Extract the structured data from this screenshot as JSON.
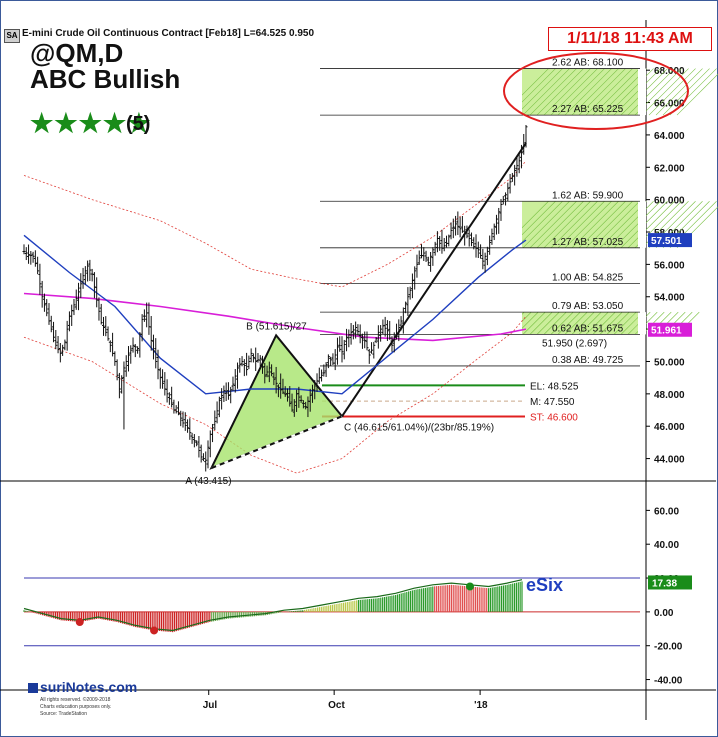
{
  "header": {
    "sa_box": "SA",
    "contract": "E-mini Crude Oil Continuous Contract [Feb18]  L=64.525  0.950",
    "ticker": "@QM,D",
    "pattern": "ABC Bullish",
    "stars": "★★★★★",
    "rating": "(5)",
    "timestamp": "1/11/18 11:43 AM"
  },
  "logo": {
    "name": "suriNotes.com",
    "line1": "All rights reserved. ©2009-2018",
    "line2": "Charts education purposes only.",
    "line3": "Source: TradeStation"
  },
  "colors": {
    "bars": "#111111",
    "sma_blue": "#1f3fbf",
    "sma_magenta": "#d81ed8",
    "band_red": "#e0403a",
    "pattern_fill": "#a6e36b",
    "zone_fill": "#b9e87a",
    "el_green": "#1a8c1a",
    "st_red": "#e02020",
    "ellipse_red": "#e02020",
    "esix_blue": "#1f3fbf"
  },
  "chart_data": [
    {
      "type": "candlestick",
      "symbol": "@QM,D",
      "ylim": [
        42.8,
        69.0
      ],
      "y_ticks": [
        "44.000",
        "46.000",
        "48.000",
        "50.000",
        "52.000",
        "54.000",
        "56.000",
        "58.000",
        "60.000",
        "62.000",
        "64.000",
        "66.000",
        "68.000"
      ],
      "x_ticks": [
        "Jul",
        "Oct",
        "'18"
      ],
      "last_price_tags": [
        {
          "value": "57.501",
          "color": "#1f3fbf"
        },
        {
          "value": "51.961",
          "color": "#d81ed8"
        }
      ],
      "ohlc_close_path": [
        [
          0,
          56.8
        ],
        [
          4,
          56.6
        ],
        [
          8,
          56.5
        ],
        [
          12,
          55.6
        ],
        [
          16,
          54.0
        ],
        [
          20,
          53.0
        ],
        [
          24,
          52.0
        ],
        [
          28,
          51.0
        ],
        [
          32,
          50.5
        ],
        [
          36,
          51.2
        ],
        [
          40,
          52.8
        ],
        [
          44,
          53.5
        ],
        [
          48,
          54.3
        ],
        [
          52,
          55.3
        ],
        [
          56,
          55.9
        ],
        [
          60,
          55.4
        ],
        [
          64,
          53.8
        ],
        [
          68,
          52.4
        ],
        [
          72,
          51.8
        ],
        [
          76,
          51.0
        ],
        [
          80,
          50.0
        ],
        [
          84,
          48.3
        ],
        [
          88,
          49.6
        ],
        [
          92,
          50.4
        ],
        [
          96,
          51.0
        ],
        [
          100,
          50.8
        ],
        [
          104,
          52.6
        ],
        [
          108,
          53.0
        ],
        [
          112,
          51.3
        ],
        [
          116,
          50.0
        ],
        [
          120,
          49.0
        ],
        [
          124,
          48.3
        ],
        [
          128,
          47.7
        ],
        [
          132,
          47.0
        ],
        [
          136,
          46.8
        ],
        [
          140,
          46.2
        ],
        [
          144,
          45.9
        ],
        [
          148,
          45.3
        ],
        [
          152,
          44.9
        ],
        [
          156,
          44.1
        ],
        [
          160,
          43.9
        ],
        [
          164,
          45.5
        ],
        [
          168,
          46.3
        ],
        [
          172,
          47.6
        ],
        [
          176,
          48.2
        ],
        [
          180,
          47.9
        ],
        [
          184,
          48.6
        ],
        [
          188,
          49.6
        ],
        [
          192,
          50.0
        ],
        [
          196,
          49.5
        ],
        [
          200,
          50.5
        ],
        [
          204,
          50.0
        ],
        [
          208,
          50.2
        ],
        [
          212,
          49.1
        ],
        [
          216,
          49.6
        ],
        [
          220,
          48.9
        ],
        [
          224,
          48.4
        ],
        [
          228,
          48.1
        ],
        [
          232,
          47.8
        ],
        [
          236,
          47.0
        ],
        [
          240,
          48.0
        ],
        [
          244,
          47.6
        ],
        [
          248,
          47.2
        ],
        [
          252,
          47.9
        ],
        [
          256,
          48.6
        ],
        [
          260,
          49.0
        ],
        [
          264,
          49.3
        ],
        [
          268,
          50.3
        ],
        [
          272,
          49.9
        ],
        [
          276,
          50.9
        ],
        [
          280,
          50.6
        ],
        [
          284,
          51.5
        ],
        [
          288,
          51.8
        ],
        [
          292,
          52.1
        ],
        [
          296,
          51.6
        ],
        [
          300,
          51.3
        ],
        [
          304,
          50.4
        ],
        [
          308,
          51.0
        ],
        [
          312,
          51.8
        ],
        [
          316,
          52.2
        ],
        [
          320,
          51.9
        ],
        [
          324,
          51.0
        ],
        [
          328,
          51.7
        ],
        [
          332,
          52.5
        ],
        [
          336,
          53.6
        ],
        [
          340,
          54.4
        ],
        [
          344,
          55.6
        ],
        [
          348,
          56.4
        ],
        [
          352,
          56.7
        ],
        [
          356,
          56.1
        ],
        [
          360,
          56.9
        ],
        [
          364,
          57.6
        ],
        [
          368,
          57.0
        ],
        [
          372,
          57.3
        ],
        [
          376,
          58.1
        ],
        [
          380,
          58.5
        ],
        [
          384,
          58.2
        ],
        [
          388,
          57.9
        ],
        [
          392,
          57.6
        ],
        [
          396,
          57.1
        ],
        [
          400,
          56.9
        ],
        [
          404,
          56.2
        ],
        [
          408,
          56.8
        ],
        [
          412,
          57.9
        ],
        [
          416,
          58.8
        ],
        [
          420,
          59.7
        ],
        [
          424,
          60.3
        ],
        [
          428,
          61.1
        ],
        [
          432,
          61.8
        ],
        [
          436,
          62.4
        ],
        [
          440,
          63.4
        ],
        [
          442,
          64.5
        ]
      ],
      "blue_ma": [
        [
          0,
          57.8
        ],
        [
          40,
          55.5
        ],
        [
          80,
          53.4
        ],
        [
          120,
          50.2
        ],
        [
          160,
          48.0
        ],
        [
          200,
          48.3
        ],
        [
          240,
          48.3
        ],
        [
          280,
          48.0
        ],
        [
          320,
          50.3
        ],
        [
          360,
          52.6
        ],
        [
          400,
          55.2
        ],
        [
          430,
          56.9
        ],
        [
          442,
          57.5
        ]
      ],
      "magenta_ma": [
        [
          0,
          54.2
        ],
        [
          60,
          53.9
        ],
        [
          120,
          53.4
        ],
        [
          180,
          52.8
        ],
        [
          240,
          52.1
        ],
        [
          300,
          51.5
        ],
        [
          360,
          51.3
        ],
        [
          420,
          51.7
        ],
        [
          442,
          52.0
        ]
      ],
      "upper_band": [
        [
          0,
          61.5
        ],
        [
          60,
          60.0
        ],
        [
          120,
          58.7
        ],
        [
          160,
          57.3
        ],
        [
          200,
          55.7
        ],
        [
          240,
          55.1
        ],
        [
          280,
          54.6
        ],
        [
          320,
          56.0
        ],
        [
          360,
          57.7
        ],
        [
          400,
          59.8
        ],
        [
          430,
          61.4
        ],
        [
          442,
          62.4
        ]
      ],
      "lower_band": [
        [
          0,
          51.5
        ],
        [
          60,
          50.0
        ],
        [
          120,
          47.4
        ],
        [
          160,
          46.1
        ],
        [
          200,
          44.2
        ],
        [
          240,
          43.1
        ],
        [
          280,
          44.0
        ],
        [
          320,
          46.3
        ],
        [
          360,
          48.0
        ],
        [
          400,
          50.2
        ],
        [
          430,
          51.8
        ],
        [
          442,
          52.8
        ]
      ],
      "abc_pattern": {
        "A": {
          "x": 165,
          "y": 43.415,
          "label": "A (43.415)"
        },
        "B": {
          "x": 222,
          "y": 51.615,
          "label": "B (51.615)/27"
        },
        "C": {
          "x": 280,
          "y": 46.615,
          "label": "C (46.615/61.04%)/(23br/85.19%)"
        },
        "trend_end": {
          "x": 442,
          "y": 63.5
        }
      },
      "fib_levels": [
        {
          "label": "2.62 AB: 68.100",
          "value": 68.1
        },
        {
          "label": "2.27 AB: 65.225",
          "value": 65.225
        },
        {
          "label": "1.62 AB: 59.900",
          "value": 59.9
        },
        {
          "label": "1.27 AB: 57.025",
          "value": 57.025
        },
        {
          "label": "1.00 AB: 54.825",
          "value": 54.825
        },
        {
          "label": "0.79 AB: 53.050",
          "value": 53.05
        },
        {
          "label": "0.62 AB: 51.675",
          "value": 51.675
        },
        {
          "label": "0.38 AB: 49.725",
          "value": 49.725
        }
      ],
      "zones": [
        [
          65.225,
          68.1
        ],
        [
          57.025,
          59.9
        ],
        [
          51.675,
          53.05
        ]
      ],
      "extra_label": "51.950 (2.697)",
      "trade_levels": [
        {
          "label": "EL: 48.525",
          "value": 48.525,
          "style": "el"
        },
        {
          "label": "M: 47.550",
          "value": 47.55,
          "style": "mid"
        },
        {
          "label": "ST: 46.600",
          "value": 46.6,
          "style": "st"
        }
      ]
    },
    {
      "type": "area",
      "name": "eSix",
      "ylim": [
        -45,
        75
      ],
      "y_ticks": [
        "60.00",
        "40.00",
        "20.00",
        "0.00",
        "-20.00",
        "-40.00"
      ],
      "last_value": "17.38",
      "levels": [
        20,
        0,
        -20
      ],
      "values": [
        [
          0,
          1
        ],
        [
          20,
          -2
        ],
        [
          40,
          -5
        ],
        [
          60,
          -6
        ],
        [
          80,
          -4
        ],
        [
          100,
          -6
        ],
        [
          120,
          -9
        ],
        [
          140,
          -11
        ],
        [
          160,
          -12
        ],
        [
          180,
          -9
        ],
        [
          200,
          -6
        ],
        [
          220,
          -4
        ],
        [
          240,
          -3
        ],
        [
          260,
          -2
        ],
        [
          280,
          0
        ],
        [
          300,
          1
        ],
        [
          320,
          3
        ],
        [
          340,
          5
        ],
        [
          360,
          7
        ],
        [
          380,
          8
        ],
        [
          400,
          10
        ],
        [
          420,
          13
        ],
        [
          440,
          15
        ],
        [
          460,
          16
        ],
        [
          480,
          15
        ],
        [
          500,
          14
        ],
        [
          520,
          16
        ],
        [
          536,
          18
        ]
      ]
    }
  ]
}
